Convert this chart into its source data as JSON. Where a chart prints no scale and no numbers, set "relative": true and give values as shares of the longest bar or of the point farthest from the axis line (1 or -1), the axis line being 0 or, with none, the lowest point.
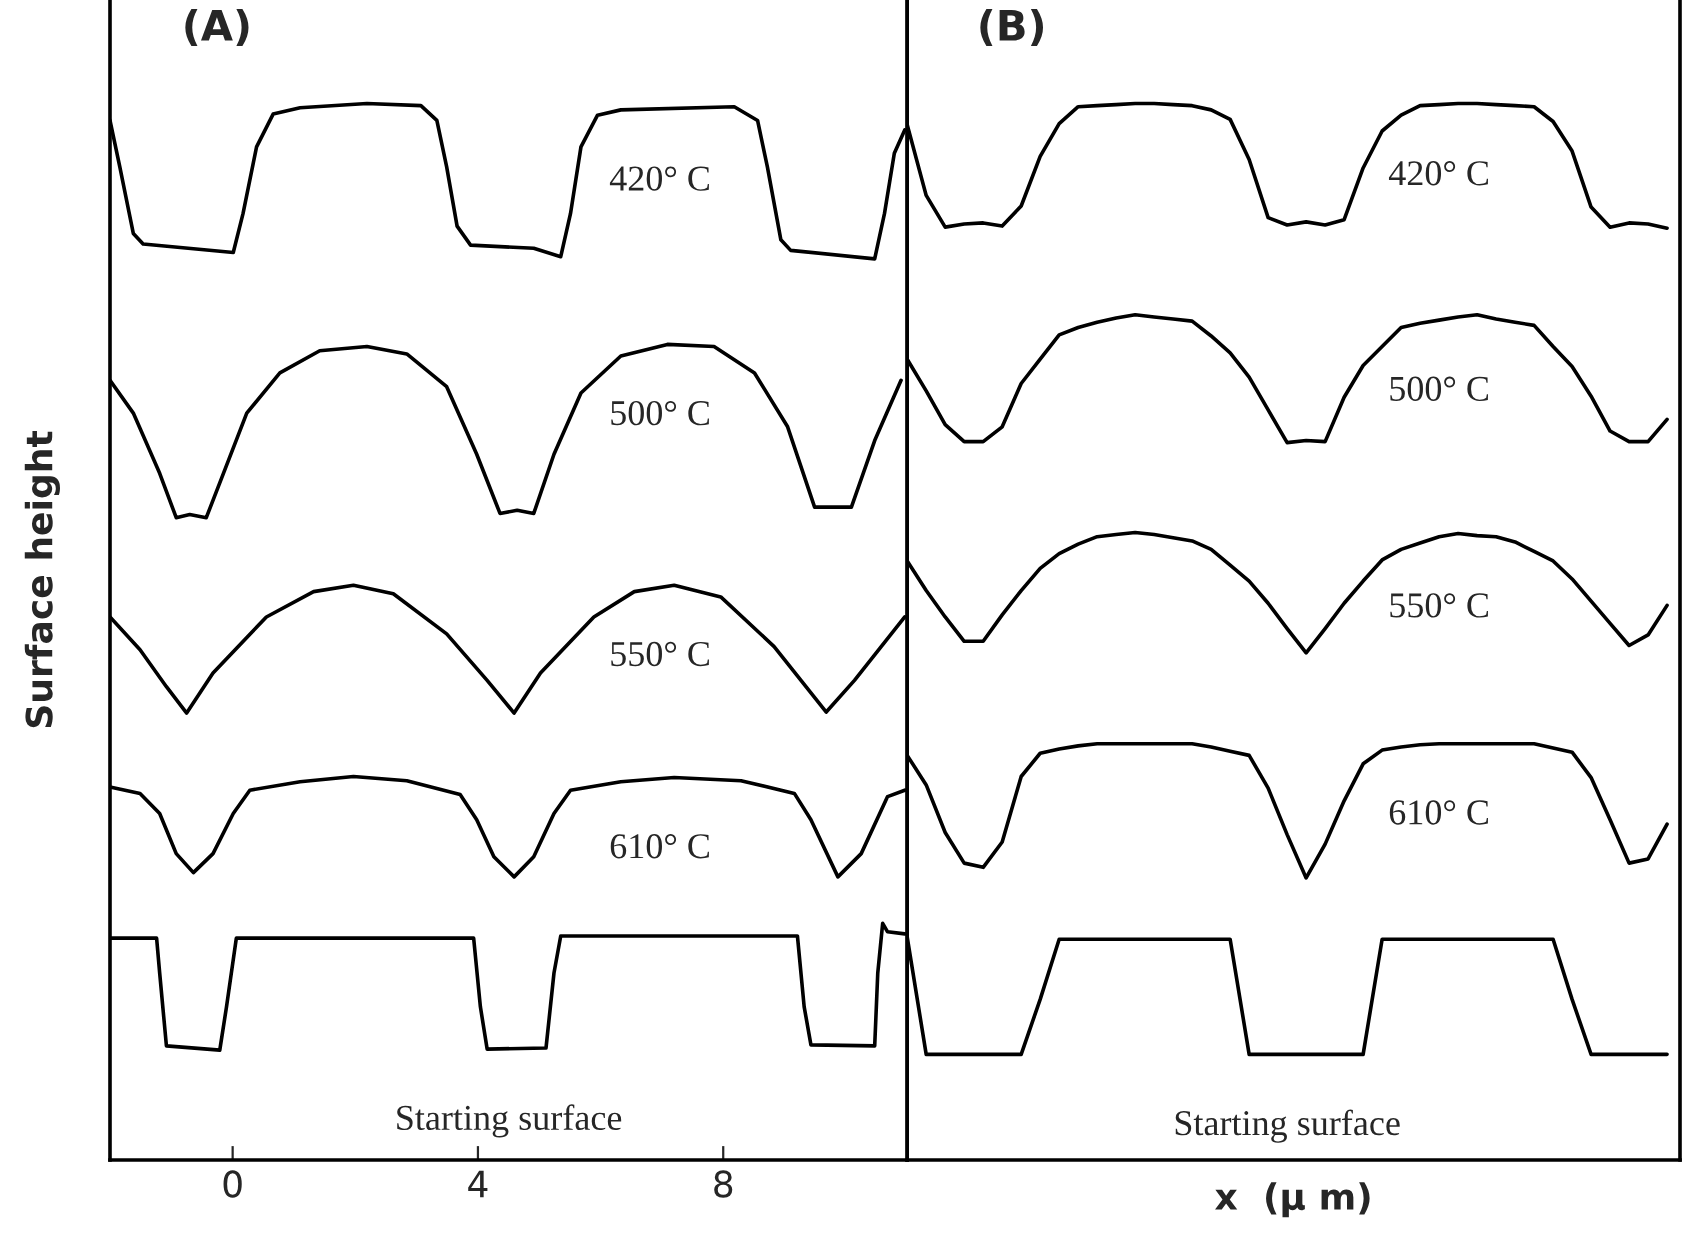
{
  "chart_data": [
    {
      "type": "line",
      "relative": true,
      "ylabel": "Surface height",
      "xlim": [
        -2,
        11
      ],
      "xticks": [
        0,
        4,
        8
      ],
      "tick_labels": "x",
      "grid": false,
      "legend": false,
      "annotations": [
        "(A)",
        "420° C",
        "500° C",
        "550° C",
        "610° C",
        "Starting surface"
      ],
      "series": [
        {
          "color": "#000000",
          "x": [
            -2.0,
            -1.84,
            -1.62,
            -1.46,
            0.01,
            0.17,
            0.39,
            0.66,
            1.1,
            2.19,
            3.07,
            3.33,
            3.49,
            3.66,
            3.88,
            4.91,
            5.35,
            5.51,
            5.68,
            5.95,
            6.33,
            8.18,
            8.56,
            8.72,
            8.94,
            9.1,
            10.47,
            10.63,
            10.79,
            10.96
          ],
          "values": [
            0.984,
            0.94,
            0.877,
            0.867,
            0.859,
            0.896,
            0.959,
            0.99,
            0.996,
            1.0,
            0.998,
            0.984,
            0.94,
            0.884,
            0.866,
            0.863,
            0.855,
            0.896,
            0.959,
            0.989,
            0.994,
            0.997,
            0.984,
            0.94,
            0.871,
            0.861,
            0.853,
            0.896,
            0.953,
            0.975
          ]
        },
        {
          "color": "#000000",
          "x": [
            -2.0,
            -1.62,
            -1.19,
            -0.92,
            -0.7,
            -0.43,
            -0.15,
            0.23,
            0.77,
            1.42,
            2.19,
            2.84,
            3.49,
            3.98,
            4.36,
            4.64,
            4.91,
            5.24,
            5.68,
            6.33,
            7.09,
            7.85,
            8.51,
            9.05,
            9.49,
            9.81,
            10.09,
            10.47,
            10.9
          ],
          "values": [
            0.738,
            0.707,
            0.65,
            0.608,
            0.611,
            0.608,
            0.65,
            0.707,
            0.745,
            0.766,
            0.77,
            0.763,
            0.732,
            0.668,
            0.612,
            0.615,
            0.612,
            0.668,
            0.726,
            0.761,
            0.772,
            0.77,
            0.745,
            0.694,
            0.618,
            0.618,
            0.618,
            0.681,
            0.738
          ]
        },
        {
          "color": "#000000",
          "x": [
            -2.0,
            -1.51,
            -1.08,
            -0.75,
            -0.32,
            0.55,
            1.32,
            1.97,
            2.62,
            3.49,
            4.15,
            4.59,
            5.02,
            5.89,
            6.55,
            7.2,
            7.96,
            8.83,
            9.68,
            10.14,
            10.96
          ],
          "values": [
            0.514,
            0.483,
            0.448,
            0.423,
            0.461,
            0.514,
            0.538,
            0.544,
            0.536,
            0.498,
            0.454,
            0.423,
            0.461,
            0.514,
            0.538,
            0.544,
            0.533,
            0.486,
            0.424,
            0.454,
            0.514
          ]
        },
        {
          "color": "#000000",
          "x": [
            -2.0,
            -1.51,
            -1.19,
            -0.92,
            -0.64,
            -0.32,
            0.01,
            0.28,
            1.1,
            1.97,
            2.84,
            3.71,
            3.98,
            4.26,
            4.59,
            4.91,
            5.24,
            5.51,
            6.33,
            7.2,
            8.29,
            9.16,
            9.43,
            9.87,
            10.25,
            10.68,
            10.96
          ],
          "values": [
            0.353,
            0.347,
            0.328,
            0.29,
            0.272,
            0.29,
            0.328,
            0.35,
            0.358,
            0.363,
            0.359,
            0.346,
            0.322,
            0.287,
            0.268,
            0.287,
            0.328,
            0.35,
            0.358,
            0.362,
            0.359,
            0.347,
            0.322,
            0.268,
            0.29,
            0.344,
            0.35
          ]
        },
        {
          "color": "#000000",
          "x": [
            -2.0,
            -1.24,
            -1.19,
            -1.08,
            -0.21,
            -0.1,
            0.06,
            3.93,
            4.04,
            4.15,
            5.11,
            5.24,
            5.35,
            9.21,
            9.32,
            9.43,
            10.47,
            10.52,
            10.6,
            10.68,
            10.96
          ],
          "values": [
            0.21,
            0.21,
            0.177,
            0.108,
            0.104,
            0.145,
            0.21,
            0.21,
            0.145,
            0.105,
            0.106,
            0.177,
            0.212,
            0.212,
            0.145,
            0.109,
            0.108,
            0.177,
            0.224,
            0.216,
            0.214
          ]
        }
      ]
    },
    {
      "type": "line",
      "relative": true,
      "xlabel": "x  (μ m)",
      "categories": [
        null,
        null,
        null,
        null,
        null,
        null,
        null,
        null,
        null,
        null,
        null,
        null,
        null,
        null,
        null,
        null,
        null,
        null,
        null,
        null,
        null,
        null,
        null,
        null,
        null,
        null,
        null,
        null,
        null,
        null,
        null,
        null,
        null,
        null,
        null,
        null,
        null,
        null,
        null,
        null,
        null
      ],
      "tick_labels": false,
      "grid": false,
      "legend": false,
      "annotations": [
        "(B)",
        "420° C",
        "500° C",
        "550° C",
        "610° C",
        "Starting surface"
      ],
      "series": [
        {
          "color": "#000000",
          "values": [
            0.98,
            0.913,
            0.883,
            0.886,
            0.887,
            0.884,
            0.903,
            0.95,
            0.981,
            0.997,
            0.998,
            0.999,
            1.0,
            1.0,
            0.999,
            0.998,
            0.994,
            0.985,
            0.947,
            0.892,
            0.885,
            0.888,
            0.885,
            0.89,
            0.939,
            0.974,
            0.989,
            0.998,
            0.999,
            1.0,
            1.0,
            0.999,
            0.998,
            0.997,
            0.983,
            0.955,
            0.902,
            0.883,
            0.887,
            0.886,
            0.882
          ]
        },
        {
          "color": "#000000",
          "values": [
            0.758,
            0.728,
            0.696,
            0.68,
            0.68,
            0.694,
            0.735,
            0.758,
            0.781,
            0.788,
            0.793,
            0.797,
            0.8,
            0.798,
            0.796,
            0.794,
            0.78,
            0.764,
            0.741,
            0.71,
            0.679,
            0.681,
            0.68,
            0.722,
            0.752,
            0.77,
            0.788,
            0.792,
            0.795,
            0.798,
            0.8,
            0.796,
            0.793,
            0.79,
            0.77,
            0.751,
            0.723,
            0.69,
            0.68,
            0.68,
            0.701
          ]
        },
        {
          "color": "#000000",
          "values": [
            0.567,
            0.539,
            0.514,
            0.491,
            0.491,
            0.516,
            0.539,
            0.56,
            0.574,
            0.583,
            0.59,
            0.592,
            0.594,
            0.592,
            0.589,
            0.586,
            0.578,
            0.563,
            0.548,
            0.527,
            0.503,
            0.48,
            0.503,
            0.527,
            0.548,
            0.568,
            0.578,
            0.584,
            0.59,
            0.593,
            0.591,
            0.59,
            0.585,
            0.576,
            0.567,
            0.55,
            0.529,
            0.508,
            0.487,
            0.497,
            0.525
          ]
        },
        {
          "color": "#000000",
          "values": [
            0.383,
            0.355,
            0.31,
            0.281,
            0.277,
            0.301,
            0.363,
            0.385,
            0.389,
            0.392,
            0.394,
            0.394,
            0.394,
            0.394,
            0.394,
            0.394,
            0.391,
            0.387,
            0.383,
            0.352,
            0.308,
            0.267,
            0.299,
            0.34,
            0.375,
            0.388,
            0.391,
            0.393,
            0.394,
            0.394,
            0.394,
            0.394,
            0.394,
            0.394,
            0.39,
            0.386,
            0.362,
            0.322,
            0.281,
            0.285,
            0.318
          ]
        },
        {
          "color": "#000000",
          "values": [
            0.211,
            0.1,
            0.1,
            0.1,
            0.1,
            0.1,
            0.1,
            0.152,
            0.209,
            0.209,
            0.209,
            0.209,
            0.209,
            0.209,
            0.209,
            0.209,
            0.209,
            0.209,
            0.1,
            0.1,
            0.1,
            0.1,
            0.1,
            0.1,
            0.1,
            0.209,
            0.209,
            0.209,
            0.209,
            0.209,
            0.209,
            0.209,
            0.209,
            0.209,
            0.209,
            0.152,
            0.1,
            0.1,
            0.1,
            0.1,
            0.1
          ]
        }
      ]
    }
  ]
}
